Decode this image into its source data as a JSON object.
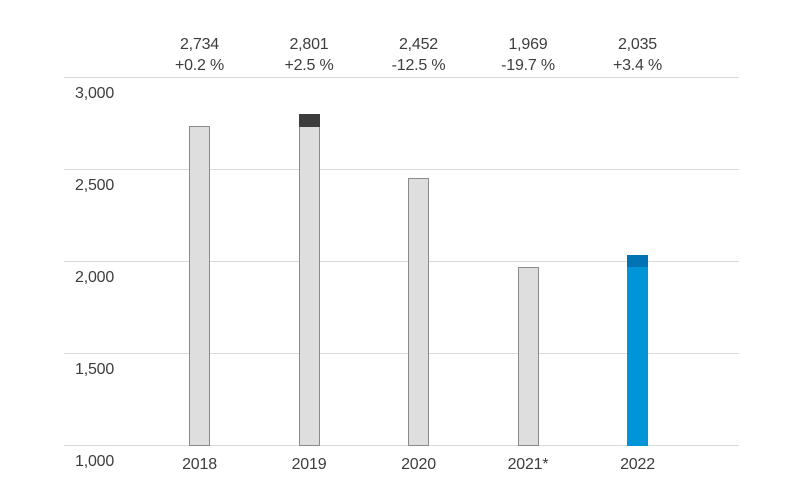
{
  "chart_data": {
    "type": "bar",
    "categories": [
      "2018",
      "2019",
      "2020",
      "2021*",
      "2022"
    ],
    "values": [
      2734,
      2801,
      2452,
      1969,
      2035
    ],
    "bars": [
      {
        "category": "2018",
        "value": 2734,
        "value_label": "2,734",
        "change_label": "+0.2 %",
        "cap_from": null,
        "style": "gray"
      },
      {
        "category": "2019",
        "value": 2801,
        "value_label": "2,801",
        "change_label": "+2.5 %",
        "cap_from": 2734,
        "style": "gray"
      },
      {
        "category": "2020",
        "value": 2452,
        "value_label": "2,452",
        "change_label": "-12.5 %",
        "cap_from": null,
        "style": "gray"
      },
      {
        "category": "2021*",
        "value": 1969,
        "value_label": "1,969",
        "change_label": "-19.7 %",
        "cap_from": null,
        "style": "gray"
      },
      {
        "category": "2022",
        "value": 2035,
        "value_label": "2,035",
        "change_label": "+3.4 %",
        "cap_from": 1969,
        "style": "blue"
      }
    ],
    "y_axis": {
      "min": 1000,
      "max": 3000,
      "ticks": [
        {
          "value": 3000,
          "label": "3,000"
        },
        {
          "value": 2500,
          "label": "2,500"
        },
        {
          "value": 2000,
          "label": "2,000"
        },
        {
          "value": 1500,
          "label": "1,500"
        },
        {
          "value": 1000,
          "label": "1,000"
        }
      ]
    },
    "grid": true,
    "legend": null,
    "title": "",
    "colors": {
      "bar_gray_fill": "#dedede",
      "bar_gray_border": "#8a8a8a",
      "bar_dark_cap": "#3d3d3d",
      "bar_blue_fill": "#0095d6",
      "bar_blue_cap": "#0273b2",
      "gridline": "#dadada",
      "text": "#3d3d3d",
      "background": "#ffffff"
    }
  }
}
